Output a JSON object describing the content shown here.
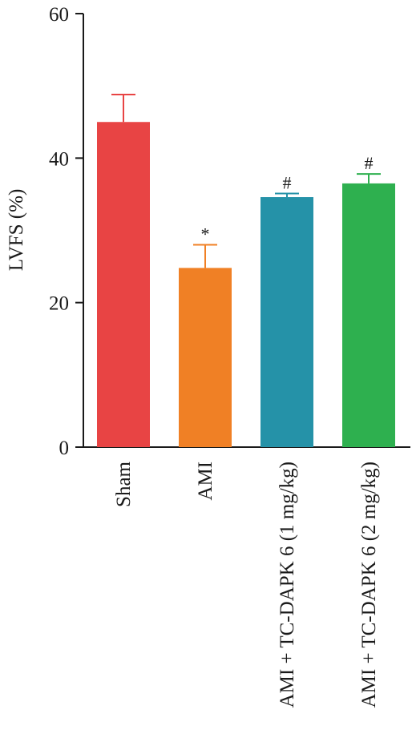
{
  "chart_data": {
    "type": "bar",
    "ylabel": "LVFS (%)",
    "ylim": [
      0,
      60
    ],
    "yticks": [
      0,
      20,
      40,
      60
    ],
    "grid": false,
    "categories": [
      "Sham",
      "AMI",
      "AMI + TC-DAPK 6 (1 mg/kg)",
      "AMI + TC-DAPK 6 (2 mg/kg)"
    ],
    "values": [
      45.0,
      24.8,
      34.6,
      36.5
    ],
    "errors": [
      3.8,
      3.2,
      0.5,
      1.3
    ],
    "colors": [
      "#e84444",
      "#f08025",
      "#2592a8",
      "#2eb04f"
    ],
    "annotations": [
      "",
      "*",
      "#",
      "#"
    ]
  }
}
